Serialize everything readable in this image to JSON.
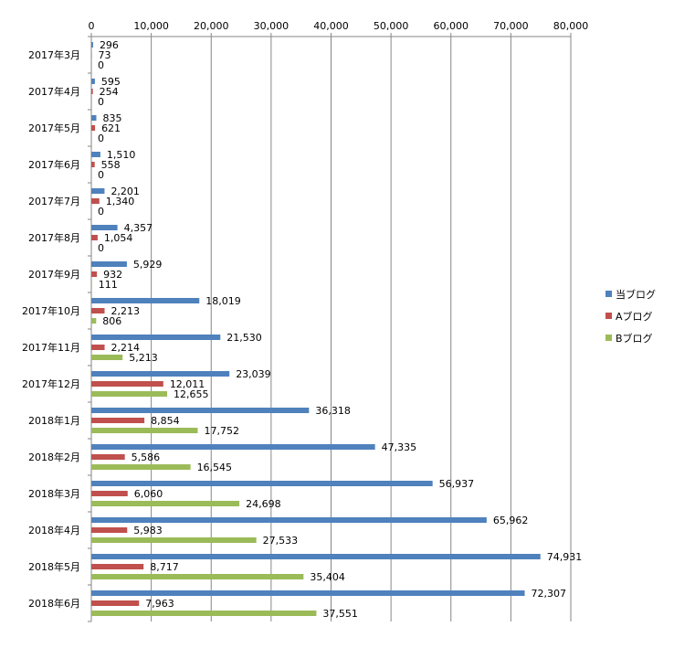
{
  "chart_data": {
    "type": "bar",
    "orientation": "horizontal",
    "categories": [
      "2017年3月",
      "2017年4月",
      "2017年5月",
      "2017年6月",
      "2017年7月",
      "2017年8月",
      "2017年9月",
      "2017年10月",
      "2017年11月",
      "2017年12月",
      "2018年1月",
      "2018年2月",
      "2018年3月",
      "2018年4月",
      "2018年5月",
      "2018年6月"
    ],
    "series": [
      {
        "name": "当ブログ",
        "color": "#4F81BD",
        "values": [
          296,
          595,
          835,
          1510,
          2201,
          4357,
          5929,
          18019,
          21530,
          23039,
          36318,
          47335,
          56937,
          65962,
          74931,
          72307
        ]
      },
      {
        "name": "Aブログ",
        "color": "#C0504D",
        "values": [
          73,
          254,
          621,
          558,
          1340,
          1054,
          932,
          2213,
          2214,
          12011,
          8854,
          5586,
          6060,
          5983,
          8717,
          7963
        ]
      },
      {
        "name": "Bブログ",
        "color": "#9BBB59",
        "values": [
          0,
          0,
          0,
          0,
          0,
          0,
          111,
          806,
          5213,
          12655,
          17752,
          16545,
          24698,
          27533,
          35404,
          37551
        ]
      }
    ],
    "xlim": [
      0,
      80000
    ],
    "xticks": [
      0,
      10000,
      20000,
      30000,
      40000,
      50000,
      60000,
      70000,
      80000
    ],
    "xtick_labels": [
      "0",
      "10,000",
      "20,000",
      "30,000",
      "40,000",
      "50,000",
      "60,000",
      "70,000",
      "80,000"
    ],
    "axis_position": "top",
    "grid": true,
    "legend_position": "right",
    "title": "",
    "xlabel": "",
    "ylabel": ""
  }
}
